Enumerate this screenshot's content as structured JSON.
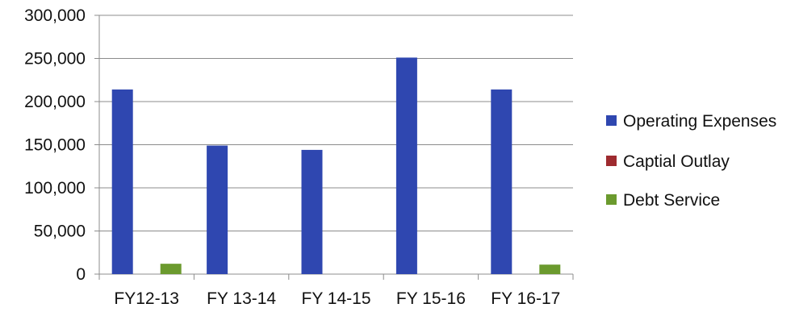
{
  "chart_data": {
    "type": "bar",
    "categories": [
      "FY12-13",
      "FY 13-14",
      "FY 14-15",
      "FY 15-16",
      "FY 16-17"
    ],
    "series": [
      {
        "name": "Operating Expenses",
        "values": [
          214000,
          149000,
          144000,
          251000,
          214000
        ],
        "color": "#2f47b0"
      },
      {
        "name": "Captial Outlay",
        "values": [
          0,
          0,
          0,
          0,
          0
        ],
        "color": "#9e2b2f"
      },
      {
        "name": "Debt Service",
        "values": [
          12000,
          0,
          0,
          0,
          11000
        ],
        "color": "#6b9a2e"
      }
    ],
    "y_ticks": [
      "0",
      "50,000",
      "100,000",
      "150,000",
      "200,000",
      "250,000",
      "300,000"
    ],
    "ylim": [
      0,
      300000
    ],
    "grid": true,
    "legend_position": "right"
  }
}
